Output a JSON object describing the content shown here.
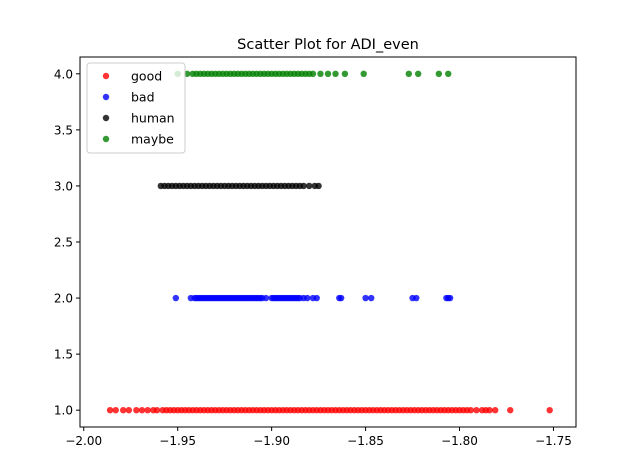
{
  "chart_data": {
    "type": "scatter",
    "title": "Scatter Plot for ADI_even",
    "xlabel": "",
    "ylabel": "",
    "xlim": [
      -2.002,
      -1.738
    ],
    "ylim": [
      0.85,
      4.15
    ],
    "x_ticks": [
      -2.0,
      -1.95,
      -1.9,
      -1.85,
      -1.8,
      -1.75
    ],
    "x_tick_labels": [
      "−2.00",
      "−1.95",
      "−1.90",
      "−1.85",
      "−1.80",
      "−1.75"
    ],
    "y_ticks": [
      1.0,
      1.5,
      2.0,
      2.5,
      3.0,
      3.5,
      4.0
    ],
    "y_tick_labels": [
      "1.0",
      "1.5",
      "2.0",
      "2.5",
      "3.0",
      "3.5",
      "4.0"
    ],
    "grid": false,
    "legend_position": "top-left",
    "series": [
      {
        "name": "good",
        "color": "#ff0000",
        "y": 1.0,
        "x": [
          -1.986,
          -1.983,
          -1.979,
          -1.976,
          -1.972,
          -1.969,
          -1.966,
          -1.963,
          -1.961,
          -1.958,
          -1.956,
          -1.954,
          -1.952,
          -1.95,
          -1.948,
          -1.946,
          -1.944,
          -1.942,
          -1.94,
          -1.938,
          -1.936,
          -1.934,
          -1.932,
          -1.93,
          -1.928,
          -1.926,
          -1.924,
          -1.922,
          -1.92,
          -1.918,
          -1.916,
          -1.914,
          -1.912,
          -1.91,
          -1.908,
          -1.906,
          -1.904,
          -1.902,
          -1.9,
          -1.898,
          -1.896,
          -1.894,
          -1.892,
          -1.89,
          -1.888,
          -1.886,
          -1.884,
          -1.882,
          -1.88,
          -1.878,
          -1.876,
          -1.874,
          -1.872,
          -1.87,
          -1.868,
          -1.866,
          -1.864,
          -1.862,
          -1.86,
          -1.858,
          -1.856,
          -1.854,
          -1.852,
          -1.85,
          -1.848,
          -1.846,
          -1.844,
          -1.842,
          -1.84,
          -1.838,
          -1.836,
          -1.834,
          -1.832,
          -1.83,
          -1.828,
          -1.826,
          -1.824,
          -1.822,
          -1.82,
          -1.818,
          -1.816,
          -1.814,
          -1.812,
          -1.81,
          -1.808,
          -1.806,
          -1.804,
          -1.802,
          -1.8,
          -1.798,
          -1.796,
          -1.794,
          -1.791,
          -1.788,
          -1.786,
          -1.784,
          -1.781,
          -1.773,
          -1.752
        ]
      },
      {
        "name": "bad",
        "color": "#0000ff",
        "y": 2.0,
        "x": [
          -1.951,
          -1.943,
          -1.941,
          -1.94,
          -1.939,
          -1.938,
          -1.937,
          -1.936,
          -1.935,
          -1.934,
          -1.933,
          -1.932,
          -1.931,
          -1.93,
          -1.929,
          -1.928,
          -1.927,
          -1.926,
          -1.925,
          -1.924,
          -1.923,
          -1.922,
          -1.921,
          -1.92,
          -1.919,
          -1.918,
          -1.917,
          -1.916,
          -1.915,
          -1.914,
          -1.913,
          -1.912,
          -1.911,
          -1.91,
          -1.909,
          -1.908,
          -1.907,
          -1.906,
          -1.905,
          -1.903,
          -1.9,
          -1.899,
          -1.898,
          -1.897,
          -1.896,
          -1.895,
          -1.894,
          -1.893,
          -1.892,
          -1.891,
          -1.89,
          -1.889,
          -1.888,
          -1.887,
          -1.886,
          -1.885,
          -1.883,
          -1.881,
          -1.878,
          -1.876,
          -1.864,
          -1.863,
          -1.85,
          -1.847,
          -1.825,
          -1.823,
          -1.807,
          -1.806,
          -1.805
        ]
      },
      {
        "name": "human",
        "color": "#000000",
        "y": 3.0,
        "x": [
          -1.959,
          -1.957,
          -1.955,
          -1.953,
          -1.951,
          -1.949,
          -1.947,
          -1.945,
          -1.943,
          -1.941,
          -1.939,
          -1.937,
          -1.935,
          -1.933,
          -1.931,
          -1.929,
          -1.927,
          -1.925,
          -1.923,
          -1.921,
          -1.919,
          -1.917,
          -1.915,
          -1.913,
          -1.911,
          -1.909,
          -1.907,
          -1.905,
          -1.903,
          -1.901,
          -1.899,
          -1.897,
          -1.895,
          -1.893,
          -1.891,
          -1.889,
          -1.887,
          -1.885,
          -1.883,
          -1.88,
          -1.877,
          -1.875
        ]
      },
      {
        "name": "maybe",
        "color": "#008000",
        "y": 4.0,
        "x": [
          -1.95,
          -1.945,
          -1.942,
          -1.94,
          -1.938,
          -1.936,
          -1.934,
          -1.932,
          -1.93,
          -1.928,
          -1.926,
          -1.924,
          -1.922,
          -1.92,
          -1.918,
          -1.916,
          -1.914,
          -1.912,
          -1.91,
          -1.908,
          -1.906,
          -1.904,
          -1.902,
          -1.9,
          -1.898,
          -1.896,
          -1.894,
          -1.892,
          -1.89,
          -1.888,
          -1.886,
          -1.884,
          -1.882,
          -1.88,
          -1.878,
          -1.874,
          -1.87,
          -1.866,
          -1.861,
          -1.851,
          -1.827,
          -1.822,
          -1.811,
          -1.806
        ]
      }
    ]
  }
}
